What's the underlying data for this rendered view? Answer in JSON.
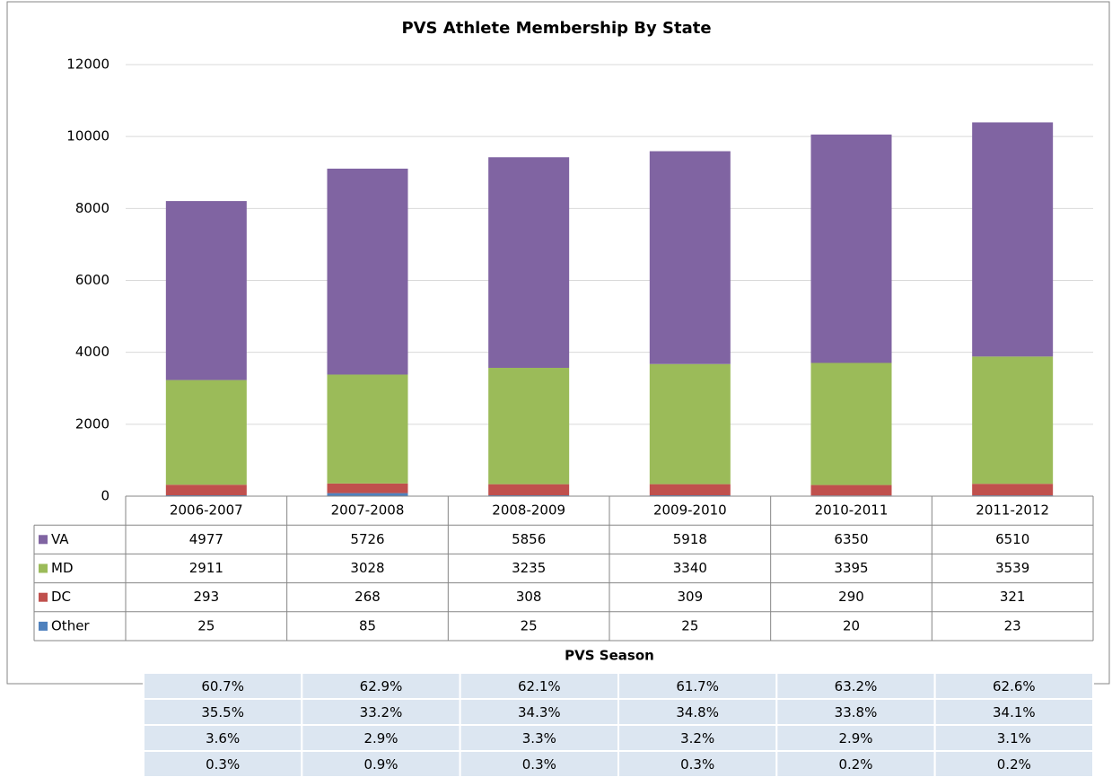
{
  "chart_data": {
    "type": "stacked_bar",
    "title": "PVS Athlete Membership By State",
    "x_label": "PVS Season",
    "categories": [
      "2006-2007",
      "2007-2008",
      "2008-2009",
      "2009-2010",
      "2010-2011",
      "2011-2012"
    ],
    "series": [
      {
        "name": "VA",
        "color": "#8064a2",
        "values": [
          4977,
          5726,
          5856,
          5918,
          6350,
          6510
        ]
      },
      {
        "name": "MD",
        "color": "#9bbb59",
        "values": [
          2911,
          3028,
          3235,
          3340,
          3395,
          3539
        ]
      },
      {
        "name": "DC",
        "color": "#c0504d",
        "values": [
          293,
          268,
          308,
          309,
          290,
          321
        ]
      },
      {
        "name": "Other",
        "color": "#4f81bd",
        "values": [
          25,
          85,
          25,
          25,
          20,
          23
        ]
      }
    ],
    "ylim": [
      0,
      12000
    ],
    "yticks": [
      0,
      2000,
      4000,
      6000,
      8000,
      10000,
      12000
    ],
    "grid": true
  },
  "percent_table": {
    "rows": [
      [
        "60.7%",
        "62.9%",
        "62.1%",
        "61.7%",
        "63.2%",
        "62.6%"
      ],
      [
        "35.5%",
        "33.2%",
        "34.3%",
        "34.8%",
        "33.8%",
        "34.1%"
      ],
      [
        "3.6%",
        "2.9%",
        "3.3%",
        "3.2%",
        "2.9%",
        "3.1%"
      ],
      [
        "0.3%",
        "0.9%",
        "0.3%",
        "0.3%",
        "0.2%",
        "0.2%"
      ]
    ]
  }
}
